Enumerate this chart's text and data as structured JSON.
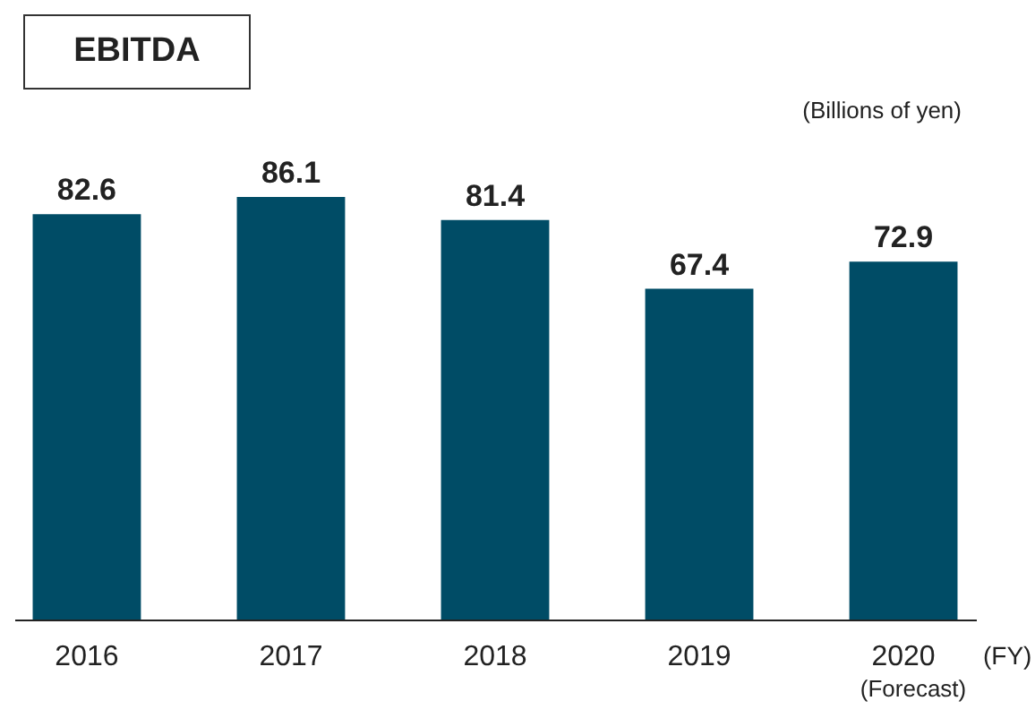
{
  "chart_data": {
    "type": "bar",
    "title": "EBITDA",
    "annotations": [
      "(Billions of yen)",
      "(FY)",
      "(Forecast)"
    ],
    "categories": [
      "2016",
      "2017",
      "2018",
      "2019",
      "2020"
    ],
    "values": [
      82.6,
      86.1,
      81.4,
      67.4,
      72.9
    ],
    "color": "#004c66",
    "data_labels": true
  }
}
